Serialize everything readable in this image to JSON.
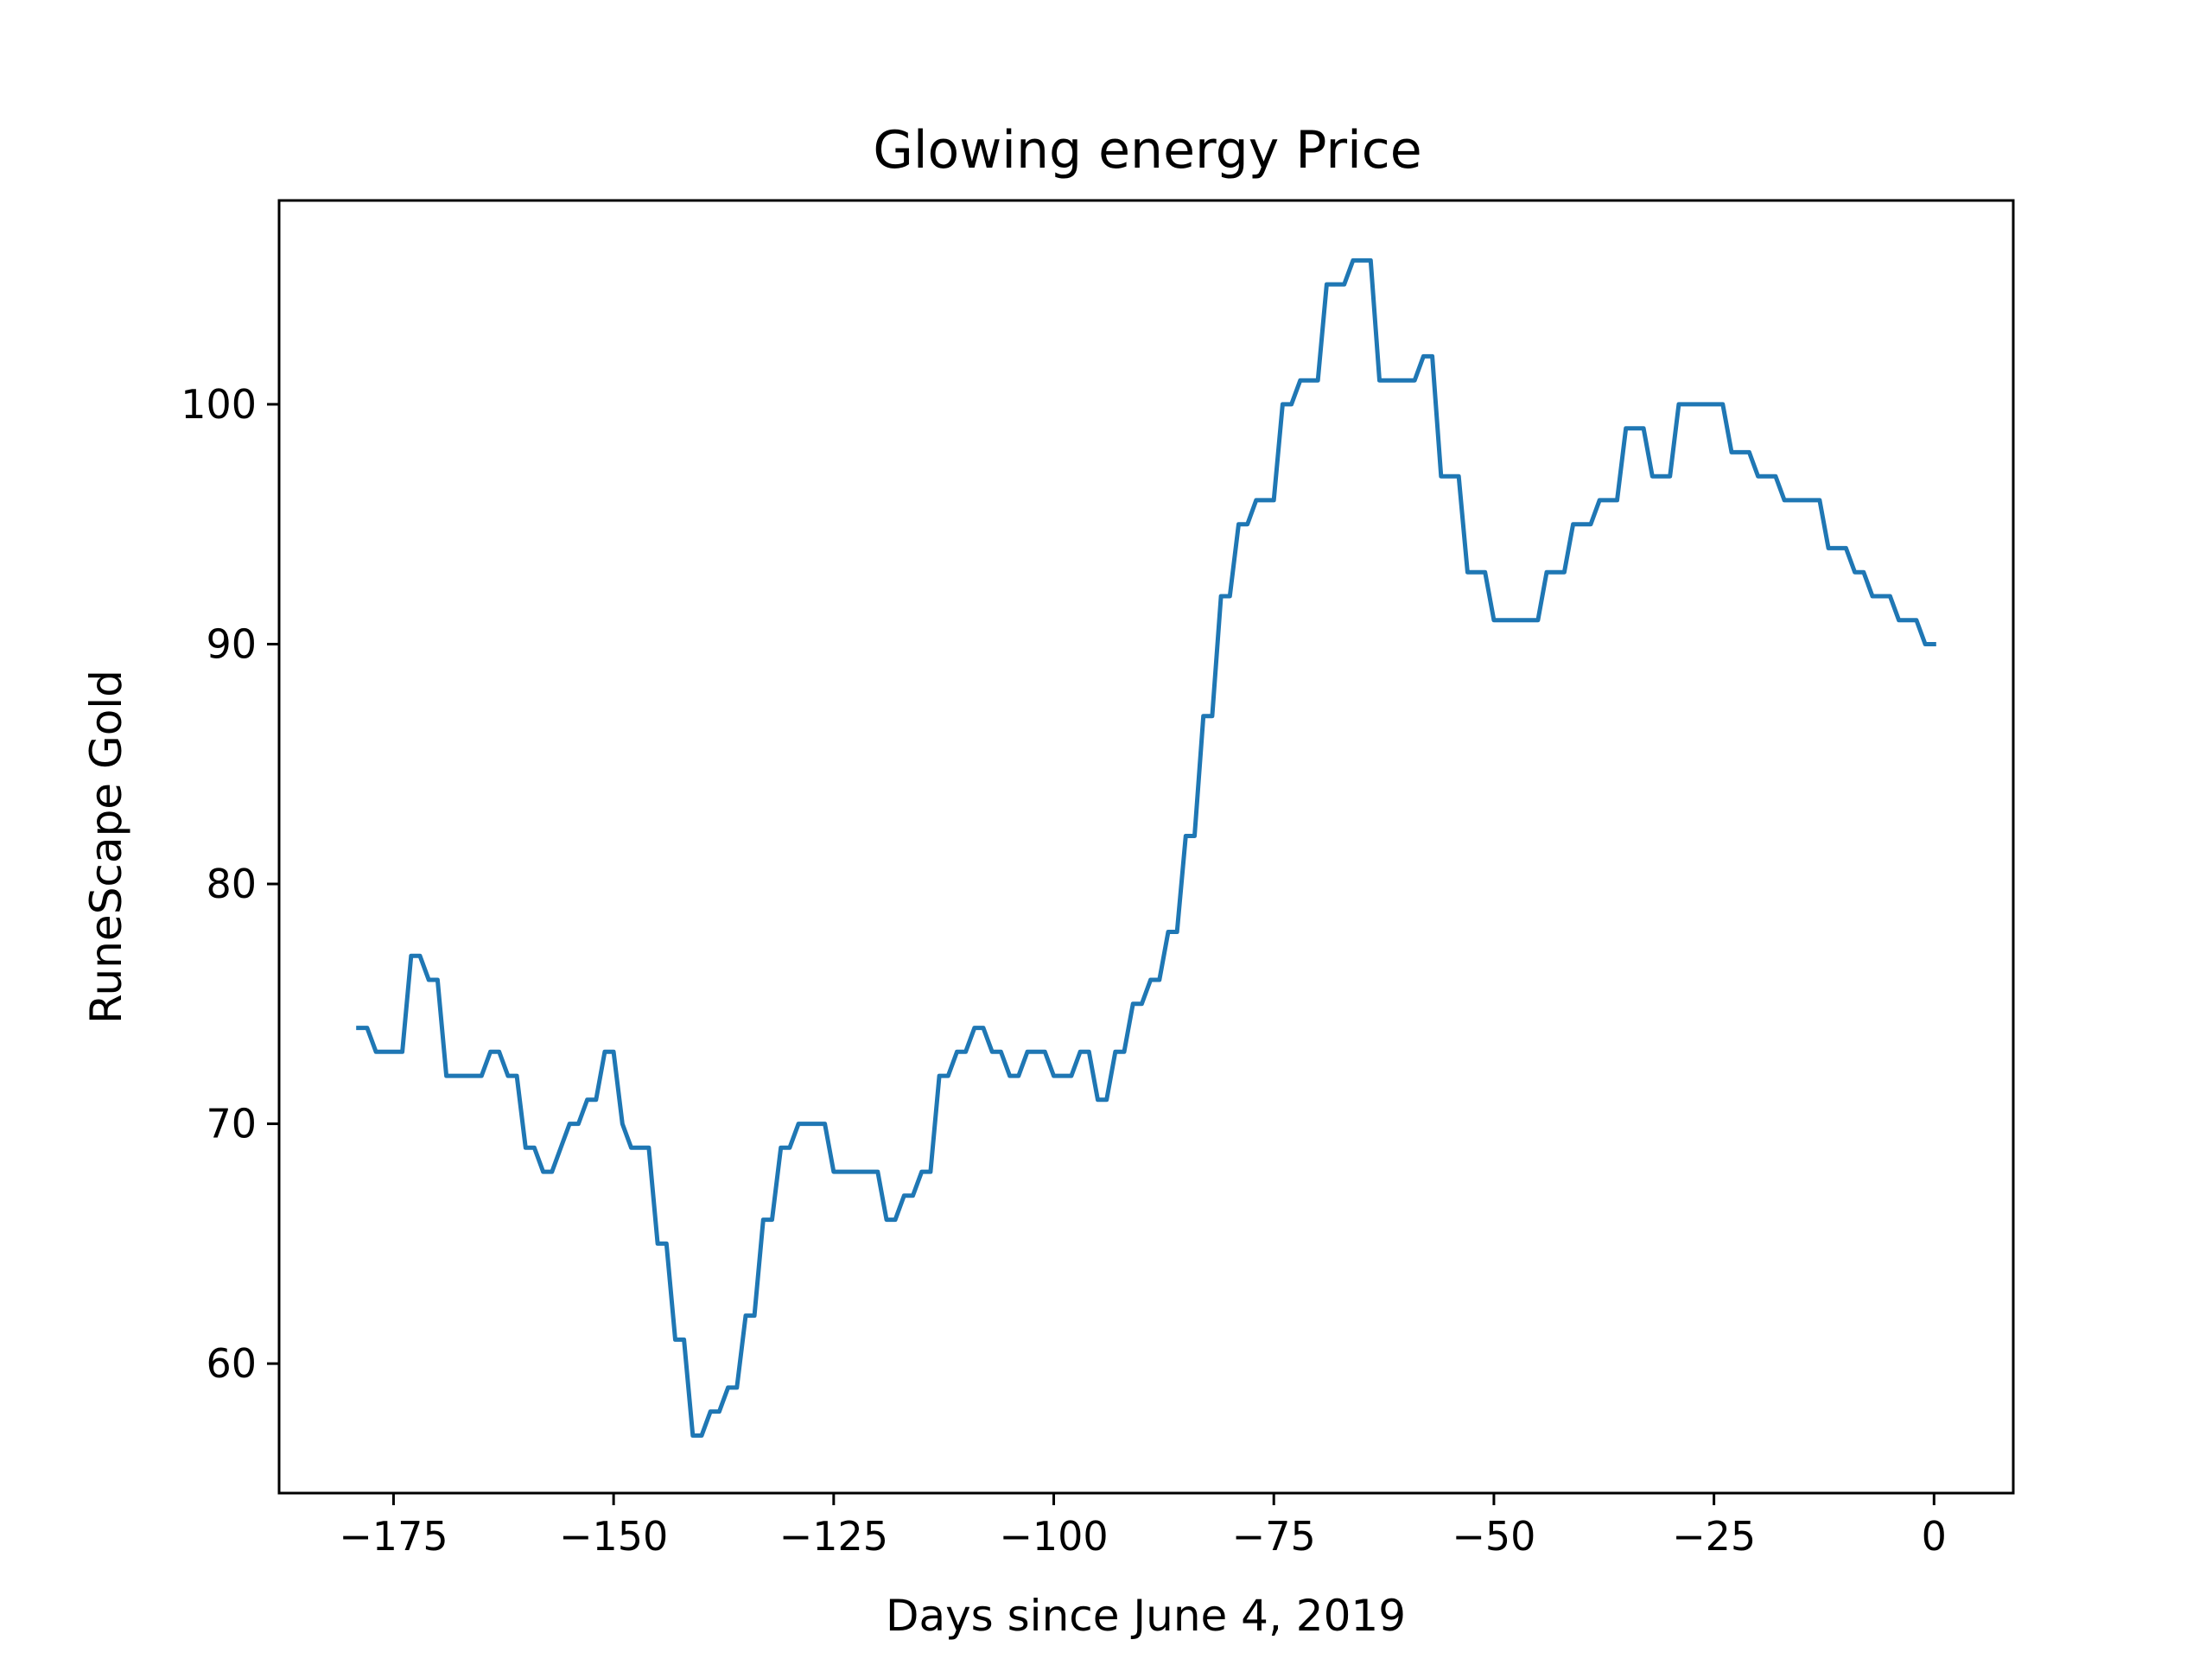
{
  "chart_data": {
    "type": "line",
    "title": "Glowing energy Price",
    "xlabel": "Days since June 4, 2019",
    "ylabel": "RuneScape Gold",
    "xlim": [
      -188,
      9
    ],
    "ylim": [
      54.6,
      108.5
    ],
    "xticks": [
      -175,
      -150,
      -125,
      -100,
      -75,
      -50,
      -25,
      0
    ],
    "xtick_labels": [
      "−175",
      "−150",
      "−125",
      "−100",
      "−75",
      "−50",
      "−25",
      "0"
    ],
    "yticks": [
      60,
      70,
      80,
      90,
      100
    ],
    "ytick_labels": [
      "60",
      "70",
      "80",
      "90",
      "100"
    ],
    "grid": false,
    "series": [
      {
        "color": "#1f77b4",
        "points": [
          [
            -179,
            74
          ],
          [
            -178,
            74
          ],
          [
            -177,
            73
          ],
          [
            -176,
            73
          ],
          [
            -175,
            73
          ],
          [
            -174,
            73
          ],
          [
            -173,
            77
          ],
          [
            -172,
            77
          ],
          [
            -171,
            76
          ],
          [
            -170,
            76
          ],
          [
            -169,
            72
          ],
          [
            -168,
            72
          ],
          [
            -167,
            72
          ],
          [
            -166,
            72
          ],
          [
            -165,
            72
          ],
          [
            -164,
            73
          ],
          [
            -163,
            73
          ],
          [
            -162,
            72
          ],
          [
            -161,
            72
          ],
          [
            -160,
            69
          ],
          [
            -159,
            69
          ],
          [
            -158,
            68
          ],
          [
            -157,
            68
          ],
          [
            -156,
            69
          ],
          [
            -155,
            70
          ],
          [
            -154,
            70
          ],
          [
            -153,
            71
          ],
          [
            -152,
            71
          ],
          [
            -151,
            73
          ],
          [
            -150,
            73
          ],
          [
            -149,
            70
          ],
          [
            -148,
            69
          ],
          [
            -147,
            69
          ],
          [
            -146,
            69
          ],
          [
            -145,
            65
          ],
          [
            -144,
            65
          ],
          [
            -143,
            61
          ],
          [
            -142,
            61
          ],
          [
            -141,
            57
          ],
          [
            -140,
            57
          ],
          [
            -139,
            58
          ],
          [
            -138,
            58
          ],
          [
            -137,
            59
          ],
          [
            -136,
            59
          ],
          [
            -135,
            62
          ],
          [
            -134,
            62
          ],
          [
            -133,
            66
          ],
          [
            -132,
            66
          ],
          [
            -131,
            69
          ],
          [
            -130,
            69
          ],
          [
            -129,
            70
          ],
          [
            -128,
            70
          ],
          [
            -127,
            70
          ],
          [
            -126,
            70
          ],
          [
            -125,
            68
          ],
          [
            -124,
            68
          ],
          [
            -123,
            68
          ],
          [
            -122,
            68
          ],
          [
            -121,
            68
          ],
          [
            -120,
            68
          ],
          [
            -119,
            66
          ],
          [
            -118,
            66
          ],
          [
            -117,
            67
          ],
          [
            -116,
            67
          ],
          [
            -115,
            68
          ],
          [
            -114,
            68
          ],
          [
            -113,
            72
          ],
          [
            -112,
            72
          ],
          [
            -111,
            73
          ],
          [
            -110,
            73
          ],
          [
            -109,
            74
          ],
          [
            -108,
            74
          ],
          [
            -107,
            73
          ],
          [
            -106,
            73
          ],
          [
            -105,
            72
          ],
          [
            -104,
            72
          ],
          [
            -103,
            73
          ],
          [
            -102,
            73
          ],
          [
            -101,
            73
          ],
          [
            -100,
            72
          ],
          [
            -99,
            72
          ],
          [
            -98,
            72
          ],
          [
            -97,
            73
          ],
          [
            -96,
            73
          ],
          [
            -95,
            71
          ],
          [
            -94,
            71
          ],
          [
            -93,
            73
          ],
          [
            -92,
            73
          ],
          [
            -91,
            75
          ],
          [
            -90,
            75
          ],
          [
            -89,
            76
          ],
          [
            -88,
            76
          ],
          [
            -87,
            78
          ],
          [
            -86,
            78
          ],
          [
            -85,
            82
          ],
          [
            -84,
            82
          ],
          [
            -83,
            87
          ],
          [
            -82,
            87
          ],
          [
            -81,
            92
          ],
          [
            -80,
            92
          ],
          [
            -79,
            95
          ],
          [
            -78,
            95
          ],
          [
            -77,
            96
          ],
          [
            -76,
            96
          ],
          [
            -75,
            96
          ],
          [
            -74,
            100
          ],
          [
            -73,
            100
          ],
          [
            -72,
            101
          ],
          [
            -71,
            101
          ],
          [
            -70,
            101
          ],
          [
            -69,
            105
          ],
          [
            -68,
            105
          ],
          [
            -67,
            105
          ],
          [
            -66,
            106
          ],
          [
            -65,
            106
          ],
          [
            -64,
            106
          ],
          [
            -63,
            101
          ],
          [
            -62,
            101
          ],
          [
            -61,
            101
          ],
          [
            -60,
            101
          ],
          [
            -59,
            101
          ],
          [
            -58,
            102
          ],
          [
            -57,
            102
          ],
          [
            -56,
            97
          ],
          [
            -55,
            97
          ],
          [
            -54,
            97
          ],
          [
            -53,
            93
          ],
          [
            -52,
            93
          ],
          [
            -51,
            93
          ],
          [
            -50,
            91
          ],
          [
            -49,
            91
          ],
          [
            -48,
            91
          ],
          [
            -47,
            91
          ],
          [
            -46,
            91
          ],
          [
            -45,
            91
          ],
          [
            -44,
            93
          ],
          [
            -43,
            93
          ],
          [
            -42,
            93
          ],
          [
            -41,
            95
          ],
          [
            -40,
            95
          ],
          [
            -39,
            95
          ],
          [
            -38,
            96
          ],
          [
            -37,
            96
          ],
          [
            -36,
            96
          ],
          [
            -35,
            99
          ],
          [
            -34,
            99
          ],
          [
            -33,
            99
          ],
          [
            -32,
            97
          ],
          [
            -31,
            97
          ],
          [
            -30,
            97
          ],
          [
            -29,
            100
          ],
          [
            -28,
            100
          ],
          [
            -27,
            100
          ],
          [
            -26,
            100
          ],
          [
            -25,
            100
          ],
          [
            -24,
            100
          ],
          [
            -23,
            98
          ],
          [
            -22,
            98
          ],
          [
            -21,
            98
          ],
          [
            -20,
            97
          ],
          [
            -19,
            97
          ],
          [
            -18,
            97
          ],
          [
            -17,
            96
          ],
          [
            -16,
            96
          ],
          [
            -15,
            96
          ],
          [
            -14,
            96
          ],
          [
            -13,
            96
          ],
          [
            -12,
            94
          ],
          [
            -11,
            94
          ],
          [
            -10,
            94
          ],
          [
            -9,
            93
          ],
          [
            -8,
            93
          ],
          [
            -7,
            92
          ],
          [
            -6,
            92
          ],
          [
            -5,
            92
          ],
          [
            -4,
            91
          ],
          [
            -3,
            91
          ],
          [
            -2,
            91
          ],
          [
            -1,
            90
          ],
          [
            0,
            90
          ]
        ]
      }
    ]
  }
}
